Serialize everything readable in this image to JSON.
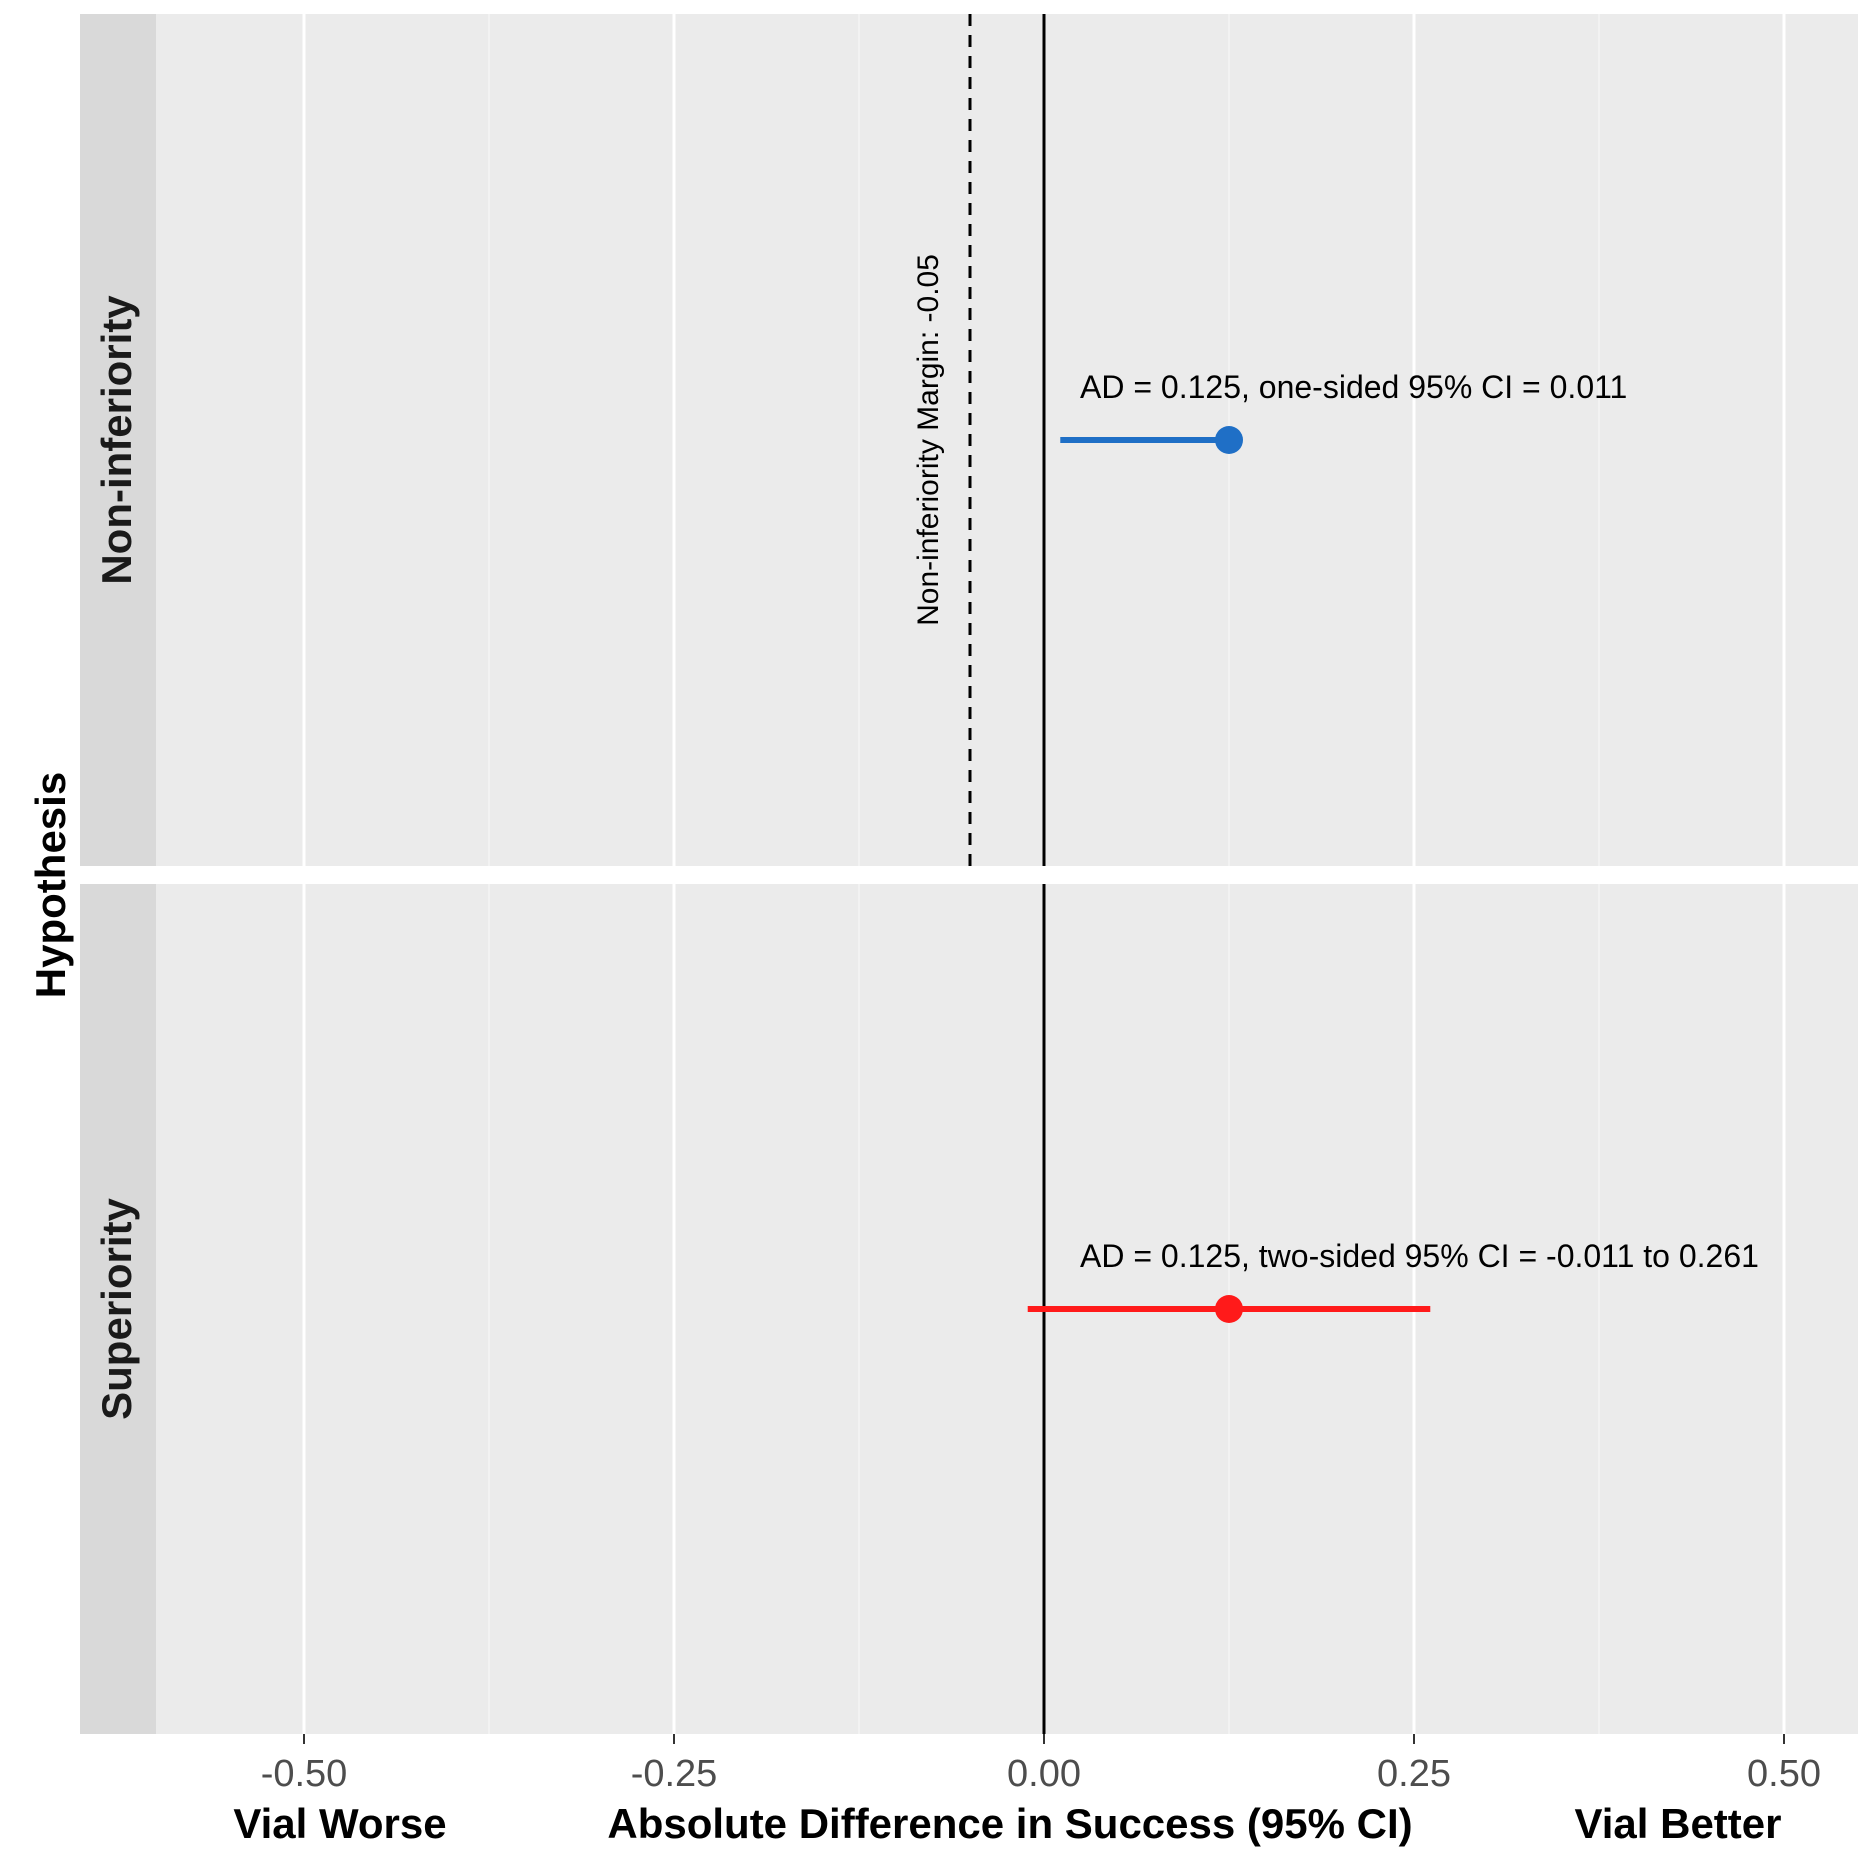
{
  "chart_data": {
    "type": "forest",
    "ylabel": "Hypothesis",
    "xlabel": "Absolute Difference in Success (95% CI)",
    "x_left_label": "Vial Worse",
    "x_right_label": "Vial Better",
    "xlim": [
      -0.6,
      0.55
    ],
    "xticks": [
      -0.5,
      -0.25,
      0.0,
      0.25,
      0.5
    ],
    "xtick_labels": [
      "-0.50",
      "-0.25",
      "0.00",
      "0.25",
      "0.50"
    ],
    "reference_line": 0.0,
    "margin": {
      "value": -0.05,
      "label": "Non-inferiority Margin: -0.05",
      "facet": "Non-inferiority"
    },
    "facets": [
      {
        "name": "Non-inferiority",
        "estimate": 0.125,
        "ci_low": 0.011,
        "ci_high": 0.125,
        "color": "#1f6fc6",
        "annotation": "AD = 0.125, one-sided 95% CI = 0.011"
      },
      {
        "name": "Superiority",
        "estimate": 0.125,
        "ci_low": -0.011,
        "ci_high": 0.261,
        "color": "#ff1a1a",
        "annotation": "AD = 0.125, two-sided 95% CI = -0.011 to 0.261"
      }
    ]
  }
}
